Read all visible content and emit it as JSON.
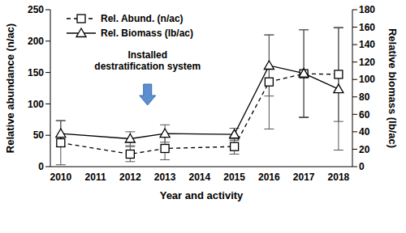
{
  "chart_data": {
    "type": "line",
    "x_label": "Year and activity",
    "y_label": "Relative abundance (n/ac)",
    "y2_label": "Relative biomass (lb/ac)",
    "x": [
      2010,
      2012,
      2013,
      2015,
      2016,
      2017,
      2018
    ],
    "xlim": [
      2009.7,
      2018.4
    ],
    "xticks": [
      2010,
      2011,
      2012,
      2013,
      2014,
      2015,
      2016,
      2017,
      2018
    ],
    "ylim": [
      0,
      250
    ],
    "yticks": [
      0,
      50,
      100,
      150,
      200,
      250
    ],
    "y2lim": [
      0,
      180
    ],
    "y2ticks": [
      0,
      20,
      40,
      60,
      80,
      100,
      120,
      140,
      160,
      180
    ],
    "legend": "upper left",
    "series": [
      {
        "name": "Rel. Abund. (n/ac)",
        "color": "#000000",
        "marker": "square",
        "line_style": "dashed",
        "values": [
          38,
          20,
          29,
          32,
          135,
          148,
          147
        ],
        "errors": [
          35,
          12,
          18,
          12,
          75,
          70,
          75
        ]
      },
      {
        "name": "Rel. Biomass (lb/ac)",
        "color": "#000000",
        "marker": "triangle",
        "line_style": "solid",
        "axis": "y2",
        "values": [
          38,
          32,
          38,
          37,
          116,
          107,
          89
        ],
        "errors": [
          15,
          8,
          10,
          7,
          35,
          50,
          70
        ]
      }
    ],
    "annotations": [
      {
        "text": "Installed destratification system",
        "x": 2012.5
      }
    ]
  }
}
